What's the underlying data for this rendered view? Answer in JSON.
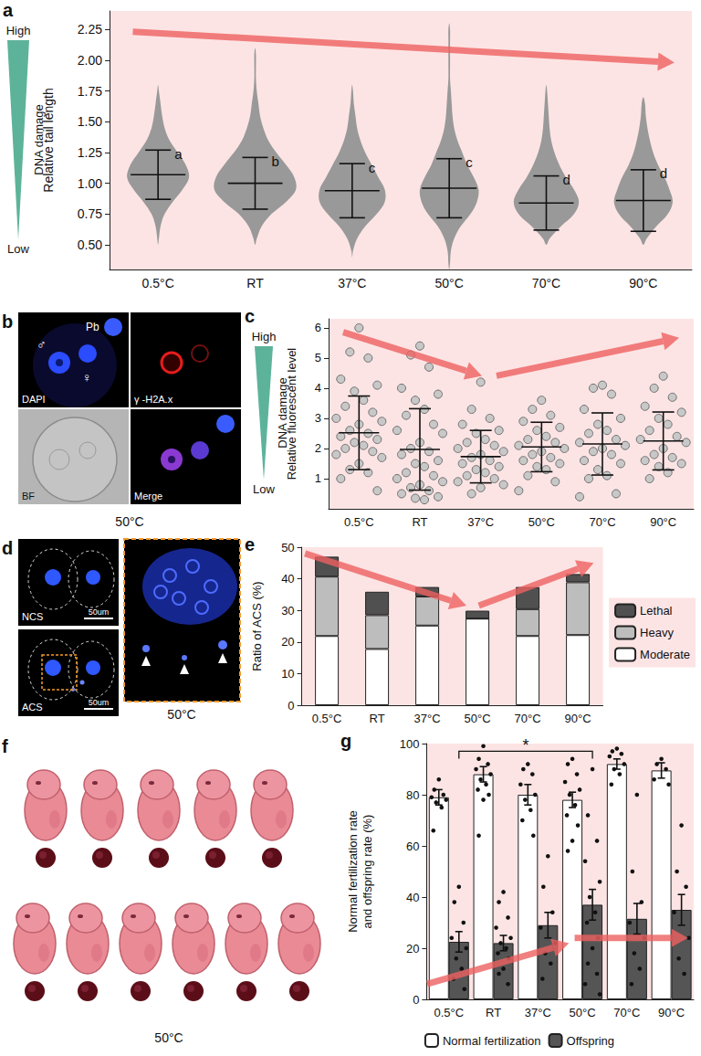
{
  "chart_data": [
    {
      "panel_label": "a",
      "type": "swarm",
      "y_label": "Relative tail length",
      "categories": [
        "0.5°C",
        "RT",
        "37°C",
        "50°C",
        "70°C",
        "90°C"
      ],
      "ylim": [
        0.3,
        2.4
      ],
      "yticks": [
        {
          "value": 0.5,
          "label": "0.50"
        },
        {
          "value": 0.75,
          "label": "0.75"
        },
        {
          "value": 1,
          "label": "1.00"
        },
        {
          "value": 1.25,
          "label": "1.25"
        },
        {
          "value": 1.5,
          "label": "1.50"
        },
        {
          "value": 1.75,
          "label": "1.75"
        },
        {
          "value": 2,
          "label": "2.00"
        },
        {
          "value": 2.25,
          "label": "2.25"
        }
      ],
      "grid": false,
      "color": "#999999",
      "bins": [
        0.3,
        0.4,
        0.5,
        0.6,
        0.7,
        0.8,
        0.9,
        1.0,
        1.1,
        1.2,
        1.3,
        1.4,
        1.5,
        1.6,
        1.7,
        1.8,
        1.9,
        2.0,
        2.1,
        2.2,
        2.3,
        2.4
      ],
      "counts": [
        [
          0,
          0,
          1,
          3,
          8,
          18,
          30,
          38,
          34,
          24,
          14,
          8,
          5,
          3,
          1,
          0,
          0,
          0,
          0,
          0,
          0
        ],
        [
          0,
          0,
          2,
          8,
          20,
          38,
          50,
          48,
          38,
          26,
          16,
          10,
          6,
          4,
          2,
          1,
          1,
          1,
          0,
          0,
          0
        ],
        [
          0,
          1,
          6,
          16,
          30,
          40,
          40,
          32,
          24,
          16,
          10,
          6,
          4,
          2,
          1,
          0,
          0,
          0,
          0,
          0,
          0
        ],
        [
          1,
          2,
          6,
          14,
          26,
          34,
          36,
          30,
          22,
          16,
          10,
          6,
          4,
          3,
          2,
          1,
          1,
          1,
          1,
          1,
          0
        ],
        [
          0,
          0,
          4,
          18,
          34,
          40,
          34,
          24,
          16,
          10,
          6,
          4,
          3,
          2,
          1,
          0,
          0,
          0,
          0,
          0,
          0
        ],
        [
          0,
          0,
          4,
          16,
          30,
          36,
          32,
          26,
          18,
          12,
          8,
          5,
          3,
          2,
          0,
          0,
          0,
          0,
          0,
          0,
          0
        ]
      ],
      "means": [
        1.07,
        1.0,
        0.94,
        0.96,
        0.84,
        0.86
      ],
      "sd": [
        0.2,
        0.21,
        0.22,
        0.24,
        0.22,
        0.25
      ],
      "group_letters": [
        "a",
        "b",
        "c",
        "c",
        "d",
        "d"
      ],
      "scale": {
        "high": "High",
        "low": "Low",
        "label": "DNA damage"
      }
    },
    {
      "panel_label": "c",
      "type": "scatter",
      "y_label": "Relative fluorescent level",
      "categories": [
        "0.5°C",
        "RT",
        "37°C",
        "50°C",
        "70°C",
        "90°C"
      ],
      "ylim": [
        0,
        6.3
      ],
      "yticks": [
        1,
        2,
        3,
        4,
        5,
        6
      ],
      "grid": false,
      "color": "#c8c8c8",
      "points": [
        [
          6.0,
          5.2,
          5.0,
          4.3,
          4.1,
          3.9,
          3.6,
          3.4,
          3.2,
          3.0,
          2.9,
          2.8,
          2.6,
          2.5,
          2.4,
          2.3,
          2.2,
          2.1,
          2.0,
          1.9,
          1.8,
          1.7,
          1.5,
          1.3,
          1.2,
          1.0,
          0.6
        ],
        [
          5.4,
          5.1,
          4.7,
          4.0,
          3.8,
          3.6,
          3.3,
          3.1,
          2.8,
          2.6,
          2.5,
          2.2,
          2.0,
          1.9,
          1.8,
          1.6,
          1.5,
          1.4,
          1.2,
          1.1,
          1.0,
          0.9,
          0.8,
          0.7,
          0.6,
          0.5,
          0.4,
          0.35,
          0.3
        ],
        [
          4.2,
          3.3,
          3.0,
          2.8,
          2.6,
          2.5,
          2.3,
          2.2,
          2.1,
          2.0,
          1.9,
          1.8,
          1.7,
          1.6,
          1.5,
          1.4,
          1.3,
          1.2,
          1.1,
          1.0,
          0.9,
          0.8,
          0.7,
          0.5
        ],
        [
          3.6,
          3.3,
          3.1,
          2.9,
          2.7,
          2.6,
          2.4,
          2.3,
          2.2,
          2.1,
          2.0,
          1.9,
          1.8,
          1.7,
          1.6,
          1.5,
          1.4,
          1.3,
          1.1,
          0.9,
          0.6
        ],
        [
          4.1,
          4.0,
          3.8,
          3.3,
          3.0,
          2.8,
          2.6,
          2.5,
          2.3,
          2.2,
          2.1,
          2.0,
          1.9,
          1.8,
          1.6,
          1.5,
          1.3,
          1.1,
          1.0,
          0.5,
          0.4
        ],
        [
          4.4,
          4.0,
          3.7,
          3.4,
          3.2,
          3.0,
          2.8,
          2.6,
          2.4,
          2.3,
          2.2,
          2.0,
          1.8,
          1.7,
          1.6,
          1.5,
          1.4,
          1.2,
          1.0
        ]
      ],
      "means": [
        2.52,
        1.97,
        1.73,
        2.05,
        2.15,
        2.25
      ],
      "sd": [
        1.22,
        1.35,
        0.87,
        0.82,
        1.03,
        0.96
      ],
      "scale": {
        "high": "High",
        "low": "Low",
        "label": "DNA damage"
      }
    },
    {
      "panel_label": "e",
      "type": "bar",
      "y_label": "Ratio of ACS (%)",
      "categories": [
        "0.5°C",
        "RT",
        "37°C",
        "50°C",
        "70°C",
        "90°C"
      ],
      "ylim": [
        0,
        50
      ],
      "yticks": [
        0,
        10,
        20,
        30,
        40,
        50
      ],
      "grid": false,
      "stacked": true,
      "legend": "right",
      "series": [
        {
          "name": "Moderate",
          "color": "#ffffff",
          "values": [
            21.9,
            17.8,
            25.2,
            27.4,
            21.9,
            22.2
          ]
        },
        {
          "name": "Heavy",
          "color": "#bdbdbd",
          "values": [
            18.8,
            10.7,
            9.2,
            0,
            8.5,
            16.7
          ]
        },
        {
          "name": "Lethal",
          "color": "#505050",
          "values": [
            6.3,
            7.4,
            3.0,
            2.5,
            7.0,
            2.6
          ]
        }
      ]
    },
    {
      "panel_label": "g",
      "type": "bar",
      "y_label": "Normal fertilization rate and offspring rate (%)",
      "categories": [
        "0.5°C",
        "RT",
        "37°C",
        "50°C",
        "70°C",
        "90°C"
      ],
      "ylim": [
        0,
        100
      ],
      "yticks": [
        0,
        20,
        40,
        60,
        80,
        100
      ],
      "grid": false,
      "legend": "bottom",
      "series": [
        {
          "name": "Normal fertilization",
          "color": "#ffffff",
          "values": [
            79,
            88,
            80,
            78,
            92,
            89.5
          ],
          "errors": [
            3,
            3,
            4,
            3,
            2,
            3
          ],
          "points": [
            [
              86,
              82,
              80,
              79,
              78,
              77,
              75,
              66
            ],
            [
              99,
              94,
              92,
              90,
              88,
              86,
              84,
              82,
              80,
              78,
              64
            ],
            [
              92,
              90,
              88,
              84,
              80,
              78,
              74,
              70,
              64
            ],
            [
              94,
              92,
              88,
              85,
              82,
              80,
              76,
              72,
              68,
              62,
              58
            ],
            [
              98,
              97,
              96,
              95,
              92,
              90,
              88,
              84
            ],
            [
              94,
              92,
              90,
              86,
              84
            ]
          ]
        },
        {
          "name": "Offspring",
          "color": "#555555",
          "values": [
            22.5,
            22,
            29,
            37,
            31.5,
            35
          ],
          "errors": [
            4,
            3,
            5,
            6,
            6,
            6
          ],
          "points": [
            [
              44,
              38,
              30,
              24,
              20,
              16,
              12,
              8,
              4
            ],
            [
              42,
              38,
              32,
              28,
              24,
              22,
              20,
              18,
              16,
              12,
              10,
              6
            ],
            [
              56,
              44,
              34,
              28,
              22,
              18,
              14,
              8
            ],
            [
              90,
              72,
              62,
              54,
              46,
              40,
              34,
              30,
              24,
              20,
              14,
              10,
              6,
              2
            ],
            [
              80,
              50,
              38,
              30,
              24,
              18,
              12,
              6
            ],
            [
              68,
              50,
              44,
              34,
              24,
              16,
              10
            ]
          ]
        }
      ],
      "significance": {
        "text": "*",
        "from": "0.5°C",
        "to": "50°C",
        "series": "Offspring",
        "y": 97
      }
    }
  ],
  "images": [
    {
      "panel_label": "b",
      "caption": "50°C",
      "tiles": [
        "DAPI",
        "γ -H2A.x",
        "BF",
        "Merge"
      ],
      "marks": {
        "male": "♂",
        "female": "♀",
        "polar_body": "Pb"
      }
    },
    {
      "panel_label": "d",
      "caption": "50°C",
      "tiles": [
        "NCS",
        "ACS"
      ],
      "scale_bar": "50um"
    },
    {
      "panel_label": "f",
      "caption": "50°C"
    }
  ]
}
